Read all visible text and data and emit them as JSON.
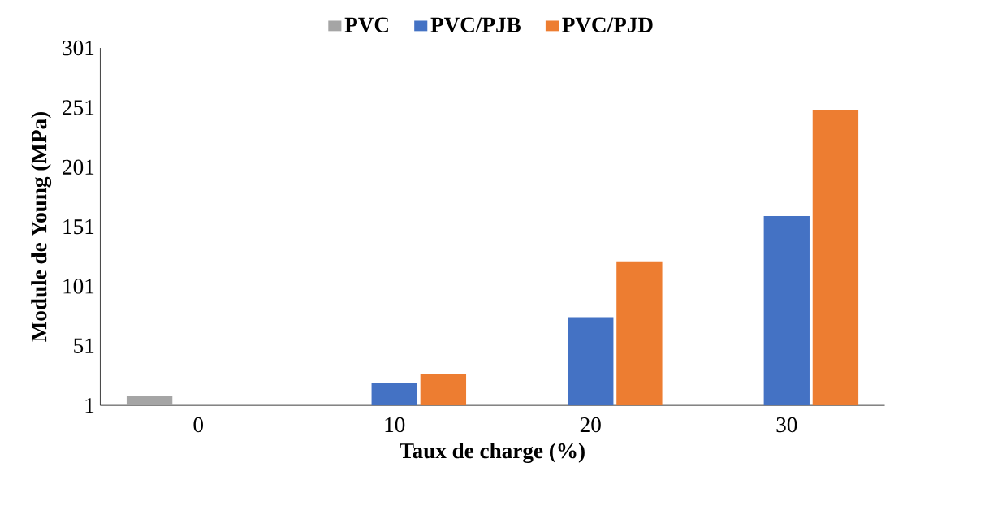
{
  "chart_data": {
    "type": "bar",
    "xlabel": "Taux de charge (%)",
    "ylabel": "Module de Young (MPa)",
    "categories": [
      "0",
      "10",
      "20",
      "30"
    ],
    "series": [
      {
        "name": "PVC",
        "color": "#a5a5a5",
        "values": [
          9,
          null,
          null,
          null
        ]
      },
      {
        "name": "PVC/PJB",
        "color": "#4472c4",
        "values": [
          null,
          20,
          75,
          160
        ]
      },
      {
        "name": "PVC/PJD",
        "color": "#ed7d31",
        "values": [
          null,
          27,
          122,
          249
        ]
      }
    ],
    "ylim": [
      1,
      301
    ],
    "yticks": [
      1,
      51,
      101,
      151,
      201,
      251,
      301
    ],
    "grid": false,
    "legend": "top"
  }
}
